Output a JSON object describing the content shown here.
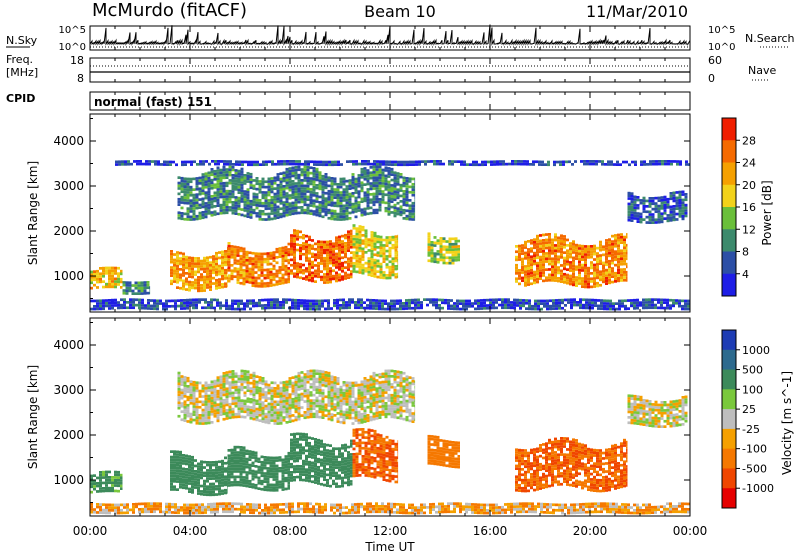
{
  "header": {
    "station": "McMurdo (fitACF)",
    "beam": "Beam 10",
    "date": "11/Mar/2010"
  },
  "strip_labels": {
    "nsky": "N.Sky",
    "nsearch": "N.Search",
    "freq_top": "Freq.",
    "freq_unit": "[MHz]",
    "nave": "Nave",
    "cpid": "CPID",
    "cpid_value": "normal (fast) 151"
  },
  "strip_ticks": {
    "noise_left": [
      "10^5",
      "10^0"
    ],
    "noise_right": [
      "10^5",
      "10^0"
    ],
    "freq_left": [
      "18",
      "8"
    ],
    "nave_right": [
      "60",
      "0"
    ]
  },
  "chart_data": [
    {
      "type": "heatmap",
      "panel": "power",
      "ylabel": "Slant Range [km]",
      "xlabel": "",
      "yticks": [
        "1000",
        "2000",
        "3000",
        "4000"
      ],
      "ylim": [
        200,
        4600
      ],
      "colorbar": {
        "label": "Power [dB]",
        "ticks": [
          "4",
          "8",
          "12",
          "16",
          "20",
          "24",
          "28"
        ],
        "range": [
          0,
          30
        ],
        "colors": [
          "#1e1ee6",
          "#2c4fa6",
          "#3c8a6c",
          "#6abf3a",
          "#f2d21a",
          "#f5a000",
          "#f56a00",
          "#f01e00"
        ]
      },
      "bands": [
        {
          "t0": 0.0,
          "t1": 1.3,
          "r0": 700,
          "r1": 1100,
          "value": 20
        },
        {
          "t0": 1.3,
          "t1": 2.4,
          "r0": 600,
          "r1": 900,
          "value": 10
        },
        {
          "t0": 3.2,
          "t1": 5.5,
          "r0": 700,
          "r1": 1500,
          "value": 22
        },
        {
          "t0": 5.5,
          "t1": 8.0,
          "r0": 800,
          "r1": 1600,
          "value": 24
        },
        {
          "t0": 8.0,
          "t1": 10.5,
          "r0": 900,
          "r1": 1900,
          "value": 26
        },
        {
          "t0": 10.5,
          "t1": 12.3,
          "r0": 1000,
          "r1": 2000,
          "value": 18
        },
        {
          "t0": 13.5,
          "t1": 14.8,
          "r0": 1300,
          "r1": 1900,
          "value": 16
        },
        {
          "t0": 17.0,
          "t1": 21.5,
          "r0": 800,
          "r1": 1800,
          "value": 24
        },
        {
          "t0": 21.5,
          "t1": 23.9,
          "r0": 2200,
          "r1": 2800,
          "value": 6
        },
        {
          "t0": 3.5,
          "t1": 13.0,
          "r0": 2300,
          "r1": 3300,
          "value": 9
        },
        {
          "t0": 1.0,
          "t1": 24.0,
          "r0": 3450,
          "r1": 3550,
          "value": 4
        },
        {
          "t0": 0.0,
          "t1": 24.0,
          "r0": 250,
          "r1": 450,
          "value": 5
        }
      ]
    },
    {
      "type": "heatmap",
      "panel": "velocity",
      "ylabel": "Slant Range [km]",
      "xlabel": "Time UT",
      "yticks": [
        "1000",
        "2000",
        "3000",
        "4000"
      ],
      "xticks": [
        "00:00",
        "04:00",
        "08:00",
        "12:00",
        "16:00",
        "20:00",
        "00:00"
      ],
      "ylim": [
        200,
        4600
      ],
      "colorbar": {
        "label": "Velocity [m s^-1]",
        "ticks": [
          "1000",
          "500",
          "100",
          "25",
          "-25",
          "-100",
          "-500",
          "-1000"
        ],
        "colors": [
          "#1e3cb4",
          "#2d6a8e",
          "#3c8a5a",
          "#7ac83c",
          "#bebebe",
          "#f5a000",
          "#f57800",
          "#f04600",
          "#e60000"
        ]
      },
      "bands": [
        {
          "t0": 0.0,
          "t1": 1.3,
          "r0": 700,
          "r1": 1100,
          "value": 100
        },
        {
          "t0": 3.2,
          "t1": 5.5,
          "r0": 700,
          "r1": 1500,
          "value": 200
        },
        {
          "t0": 5.5,
          "t1": 8.0,
          "r0": 800,
          "r1": 1600,
          "value": 200
        },
        {
          "t0": 8.0,
          "t1": 10.5,
          "r0": 900,
          "r1": 1900,
          "value": 150
        },
        {
          "t0": 10.5,
          "t1": 12.3,
          "r0": 1000,
          "r1": 2000,
          "value": -300
        },
        {
          "t0": 13.5,
          "t1": 14.8,
          "r0": 1300,
          "r1": 1900,
          "value": -200
        },
        {
          "t0": 17.0,
          "t1": 21.5,
          "r0": 800,
          "r1": 1800,
          "value": -300
        },
        {
          "t0": 21.5,
          "t1": 23.9,
          "r0": 2200,
          "r1": 2800,
          "value": 0
        },
        {
          "t0": 3.5,
          "t1": 13.0,
          "r0": 2300,
          "r1": 3300,
          "value": 0
        },
        {
          "t0": 0.0,
          "t1": 24.0,
          "r0": 250,
          "r1": 450,
          "value": -50
        }
      ]
    }
  ]
}
